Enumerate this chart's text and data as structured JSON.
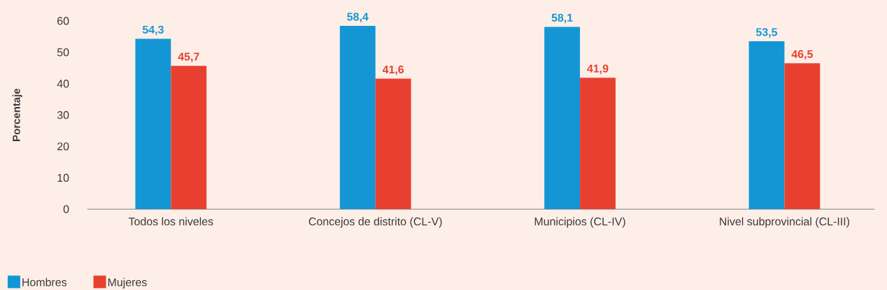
{
  "chart_data": {
    "type": "bar",
    "ylabel": "Porcentaje",
    "categories": [
      "Todos los niveles",
      "Concejos de distrito (CL-V)",
      "Municipios (CL-IV)",
      "Nivel subprovincial (CL-III)"
    ],
    "series": [
      {
        "name": "Hombres",
        "color": "#1496d4",
        "values": [
          54.3,
          58.4,
          58.1,
          53.5
        ],
        "value_labels": [
          "54,3",
          "58,4",
          "58,1",
          "53,5"
        ]
      },
      {
        "name": "Mujeres",
        "color": "#e84030",
        "values": [
          45.7,
          41.6,
          41.9,
          46.5
        ],
        "value_labels": [
          "45,7",
          "41,6",
          "41,9",
          "46,5"
        ]
      }
    ],
    "ylim": [
      0,
      60
    ],
    "yticks": [
      0,
      10,
      20,
      30,
      40,
      50,
      60
    ],
    "legend": "bottom left"
  }
}
